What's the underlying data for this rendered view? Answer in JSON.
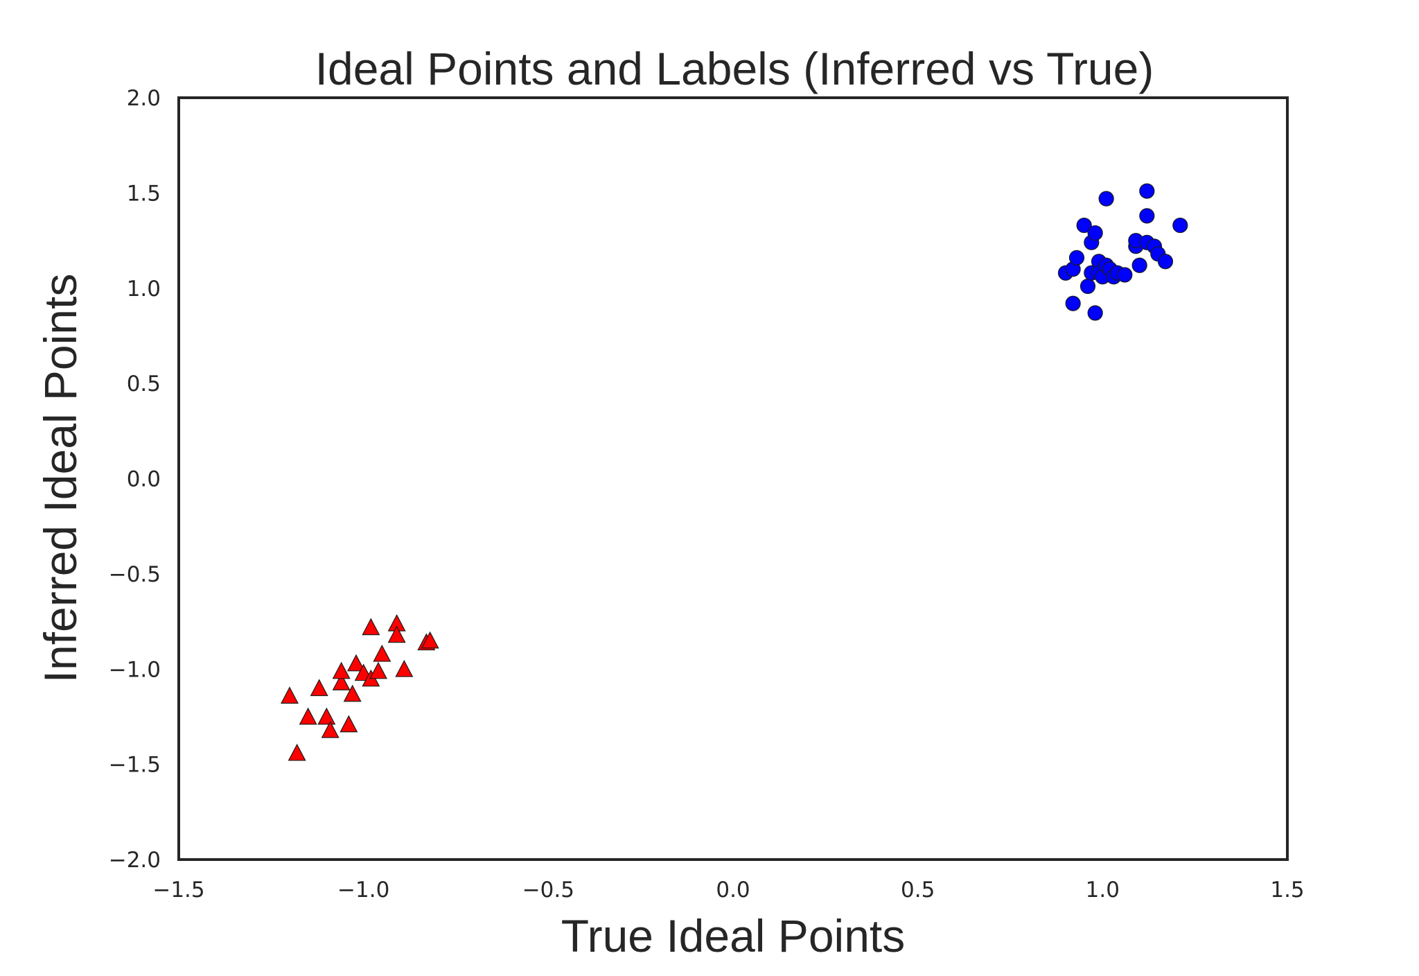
{
  "chart_data": {
    "type": "scatter",
    "title": "Ideal Points and Labels (Inferred vs True)",
    "xlabel": "True Ideal Points",
    "ylabel": "Inferred Ideal Points",
    "xlim": [
      -1.5,
      1.5
    ],
    "ylim": [
      -2.0,
      2.0
    ],
    "xticks": [
      "−1.5",
      "−1.0",
      "−0.5",
      "0.0",
      "0.5",
      "1.0",
      "1.5"
    ],
    "yticks": [
      "2.0",
      "1.5",
      "1.0",
      "0.5",
      "0.0",
      "−0.5",
      "−1.0",
      "−1.5",
      "−2.0"
    ],
    "grid": false,
    "legend": "none",
    "series": [
      {
        "marker": "triangle",
        "color": "#ff0000",
        "x": [
          -1.2,
          -1.18,
          -1.15,
          -1.12,
          -1.1,
          -1.09,
          -1.06,
          -1.06,
          -1.04,
          -1.03,
          -1.02,
          -1.0,
          -0.98,
          -0.98,
          -0.96,
          -0.95,
          -0.91,
          -0.91,
          -0.89,
          -0.83,
          -0.82
        ],
        "y": [
          -1.14,
          -1.44,
          -1.25,
          -1.1,
          -1.25,
          -1.32,
          -1.07,
          -1.01,
          -1.29,
          -1.13,
          -0.97,
          -1.02,
          -1.05,
          -0.78,
          -1.01,
          -0.92,
          -0.76,
          -0.82,
          -1.0,
          -0.86,
          -0.85
        ]
      },
      {
        "marker": "circle",
        "color": "#0000ff",
        "x": [
          0.9,
          0.92,
          0.92,
          0.93,
          0.95,
          0.96,
          0.97,
          0.97,
          0.98,
          0.98,
          0.99,
          0.99,
          1.0,
          1.01,
          1.01,
          1.02,
          1.03,
          1.04,
          1.06,
          1.09,
          1.09,
          1.1,
          1.12,
          1.12,
          1.12,
          1.14,
          1.15,
          1.17,
          1.21
        ],
        "y": [
          1.08,
          1.1,
          0.92,
          1.16,
          1.33,
          1.01,
          1.24,
          1.08,
          1.29,
          0.87,
          1.14,
          1.08,
          1.06,
          1.47,
          1.12,
          1.1,
          1.06,
          1.08,
          1.07,
          1.22,
          1.25,
          1.12,
          1.51,
          1.38,
          1.24,
          1.22,
          1.18,
          1.14,
          1.33
        ]
      }
    ]
  }
}
